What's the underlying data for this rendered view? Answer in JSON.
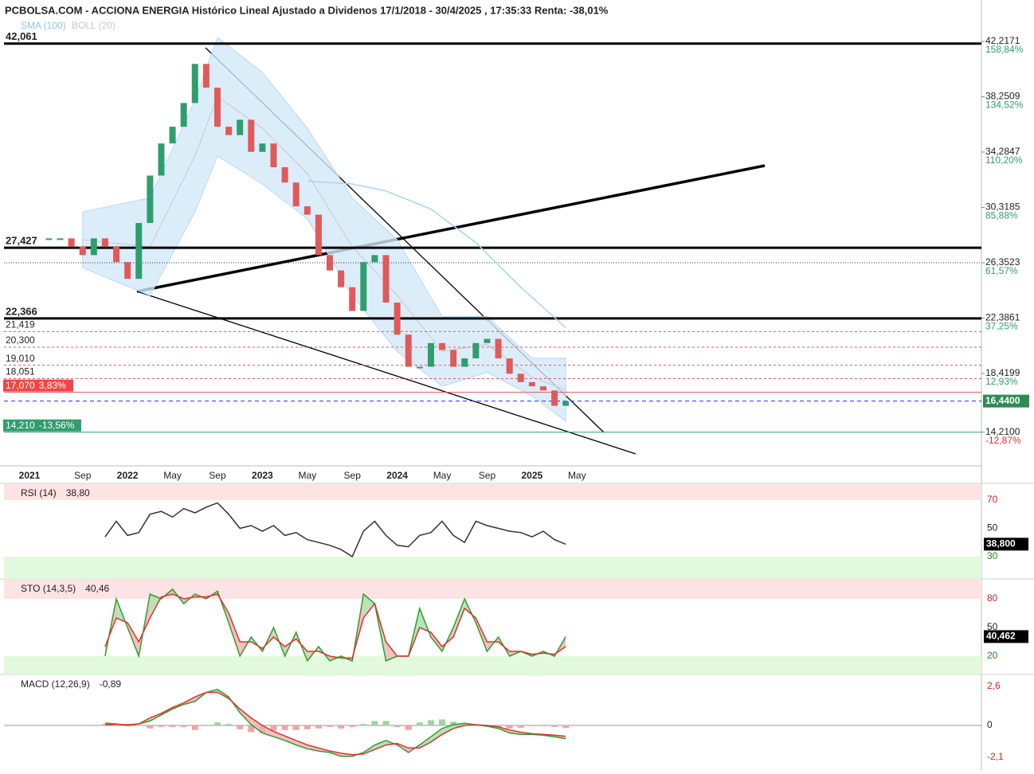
{
  "chart_data": [
    {
      "type": "candlestick",
      "title": "PCBOLSA.COM - ACCIONA ENERGIA Histórico Lineal Ajustado a Dividenos 17/1/2018 - 30/4/2025 , 17:35:33 Renta: -38,01%",
      "x": [
        "2021-06",
        "2021-07",
        "2021-08",
        "2021-09",
        "2021-10",
        "2021-11",
        "2021-12",
        "2022-01",
        "2022-02",
        "2022-03",
        "2022-04",
        "2022-05",
        "2022-06",
        "2022-07",
        "2022-08",
        "2022-09",
        "2022-10",
        "2022-11",
        "2022-12",
        "2023-01",
        "2023-02",
        "2023-03",
        "2023-04",
        "2023-05",
        "2023-06",
        "2023-07",
        "2023-08",
        "2023-09",
        "2023-10",
        "2023-11",
        "2023-12",
        "2024-01",
        "2024-02",
        "2024-03",
        "2024-04",
        "2024-05",
        "2024-06",
        "2024-07",
        "2024-08",
        "2024-09",
        "2024-10",
        "2024-11",
        "2024-12",
        "2025-01",
        "2025-02",
        "2025-03",
        "2025-04"
      ],
      "values": [
        28.1,
        28.1,
        27.5,
        26.9,
        28.1,
        27.5,
        26.4,
        25.2,
        29.2,
        32.6,
        34.9,
        36.1,
        37.8,
        40.6,
        38.9,
        36.1,
        35.5,
        36.6,
        34.3,
        34.9,
        33.2,
        32.1,
        30.4,
        29.8,
        26.9,
        25.8,
        24.6,
        22.9,
        26.4,
        26.9,
        23.5,
        21.2,
        18.9,
        18.9,
        20.6,
        20.1,
        18.9,
        19.5,
        20.6,
        20.9,
        19.5,
        18.4,
        17.8,
        17.5,
        17.2,
        16.1,
        16.44
      ],
      "up_color": "#2e9e6e",
      "down_color": "#e05a5a",
      "series": [
        {
          "name": "SMA (100)",
          "color": "#a8d4f0",
          "x": [
            "2023-05",
            "2023-09",
            "2023-12",
            "2024-04",
            "2024-08",
            "2024-12",
            "2025-04"
          ],
          "values": [
            32.2,
            32.0,
            31.5,
            30.2,
            27.8,
            24.6,
            21.7
          ]
        }
      ],
      "band": {
        "name": "BOLL (20)",
        "color": "#c8c8c8",
        "fill": "#d3e9f9",
        "x": [
          "2021-09",
          "2022-03",
          "2022-07",
          "2022-09",
          "2023-01",
          "2023-05",
          "2023-09",
          "2024-01",
          "2024-05",
          "2024-09",
          "2025-01",
          "2025-04"
        ],
        "upper": [
          30.0,
          31,
          38,
          42.5,
          40,
          36,
          31,
          28,
          22.5,
          22.5,
          19.5,
          19.5
        ],
        "lower": [
          26.0,
          24,
          30,
          34,
          32,
          29.5,
          24,
          20,
          17.5,
          18.5,
          16.8,
          15
        ]
      },
      "levels": [
        {
          "value": 42.061,
          "label": "42,061",
          "style": "thick"
        },
        {
          "value": 27.427,
          "label": "27,427",
          "style": "thick"
        },
        {
          "value": 26.3523,
          "style": "dotted"
        },
        {
          "value": 22.366,
          "label": "22,366",
          "style": "thick"
        },
        {
          "value": 21.419,
          "label": "21,419",
          "style": "dashed"
        },
        {
          "value": 20.3,
          "label": "20,300",
          "style": "dashed"
        },
        {
          "value": 19.01,
          "label": "19,010",
          "style": "dashed"
        },
        {
          "value": 18.051,
          "label": "18,051",
          "style": "dashed"
        },
        {
          "value": 17.07,
          "label": "17,070",
          "pct": "3,83%",
          "style": "red"
        },
        {
          "value": 16.44,
          "label": "16,4400",
          "style": "current"
        },
        {
          "value": 14.21,
          "label": "14,210",
          "pct": "-13,56%",
          "style": "green"
        }
      ],
      "xlim": [
        "2021-02",
        "2028-05"
      ],
      "xticks": [
        {
          "value": "2021-01",
          "label": "2021"
        },
        {
          "value": "2021-09",
          "label": "Sep"
        },
        {
          "value": "2022-01",
          "label": "2022"
        },
        {
          "value": "2022-05",
          "label": "May"
        },
        {
          "value": "2022-09",
          "label": "Sep"
        },
        {
          "value": "2023-01",
          "label": "2023"
        },
        {
          "value": "2023-05",
          "label": "May"
        },
        {
          "value": "2023-09",
          "label": "Sep"
        },
        {
          "value": "2024-01",
          "label": "2024"
        },
        {
          "value": "2024-05",
          "label": "May"
        },
        {
          "value": "2024-09",
          "label": "Sep"
        },
        {
          "value": "2025-01",
          "label": "2025"
        },
        {
          "value": "2025-05",
          "label": "May"
        }
      ],
      "ylim": [
        11.8,
        43.47
      ],
      "yticks": [
        {
          "value": 42.2171,
          "label": "42,2171"
        },
        {
          "value": 38.2509,
          "label": "38,2509"
        },
        {
          "value": 34.2847,
          "label": "34,2847"
        },
        {
          "value": 30.3185,
          "label": "30,3185"
        },
        {
          "value": 26.3523,
          "label": "26,3523"
        },
        {
          "value": 22.3861,
          "label": "22,3861"
        },
        {
          "value": 18.4199,
          "label": "18,4199"
        },
        {
          "value": 14.21,
          "label": "14,2100"
        }
      ],
      "y2lim": [
        -27.65,
        166.53
      ],
      "y2ticks": [
        {
          "value": 158.84,
          "label": "158,84%"
        },
        {
          "value": 134.52,
          "label": "134,52%"
        },
        {
          "value": 110.2,
          "label": "110,20%"
        },
        {
          "value": 85.88,
          "label": "85,88%"
        },
        {
          "value": 61.57,
          "label": "61,57%"
        },
        {
          "value": 37.25,
          "label": "37,25%"
        },
        {
          "value": 12.93,
          "label": "12,93%"
        },
        {
          "value": -12.87,
          "label": "-12,87%"
        }
      ]
    },
    {
      "type": "line",
      "title": "RSI (14)",
      "value_label": "38,80",
      "last_label": "38,800",
      "x": [
        "2021-11",
        "2021-12",
        "2022-01",
        "2022-02",
        "2022-03",
        "2022-04",
        "2022-05",
        "2022-06",
        "2022-07",
        "2022-08",
        "2022-09",
        "2022-10",
        "2022-11",
        "2022-12",
        "2023-01",
        "2023-02",
        "2023-03",
        "2023-04",
        "2023-05",
        "2023-06",
        "2023-07",
        "2023-08",
        "2023-09",
        "2023-10",
        "2023-11",
        "2023-12",
        "2024-01",
        "2024-02",
        "2024-03",
        "2024-04",
        "2024-05",
        "2024-06",
        "2024-07",
        "2024-08",
        "2024-09",
        "2024-10",
        "2024-11",
        "2024-12",
        "2025-01",
        "2025-02",
        "2025-03",
        "2025-04"
      ],
      "series": [
        {
          "color": "#333333",
          "values": [
            44,
            55,
            45,
            47,
            60,
            62,
            58,
            64,
            61,
            65,
            68,
            60,
            50,
            52,
            48,
            52,
            45,
            47,
            42,
            40,
            38,
            35,
            30,
            48,
            55,
            45,
            38,
            37,
            45,
            47,
            55,
            45,
            40,
            55,
            52,
            50,
            48,
            47,
            44,
            48,
            42,
            38.8
          ]
        }
      ],
      "zones": [
        {
          "above": 70,
          "color": "#fde3e3"
        },
        {
          "below": 30,
          "color": "#e2f9dd"
        }
      ],
      "ylim": [
        14.2,
        81.3
      ],
      "yticks": [
        70,
        50,
        30
      ],
      "tick_colors": [
        "#d62020",
        "#222222",
        "#1a8a1a"
      ]
    },
    {
      "type": "line",
      "title": "STO (14,3,5)",
      "value_label": "40,46",
      "last_label": "40,462",
      "fill_between": true,
      "x": [
        "2021-11",
        "2021-12",
        "2022-01",
        "2022-02",
        "2022-03",
        "2022-04",
        "2022-05",
        "2022-06",
        "2022-07",
        "2022-08",
        "2022-09",
        "2022-10",
        "2022-11",
        "2022-12",
        "2023-01",
        "2023-02",
        "2023-03",
        "2023-04",
        "2023-05",
        "2023-06",
        "2023-07",
        "2023-08",
        "2023-09",
        "2023-10",
        "2023-11",
        "2023-12",
        "2024-01",
        "2024-02",
        "2024-03",
        "2024-04",
        "2024-05",
        "2024-06",
        "2024-07",
        "2024-08",
        "2024-09",
        "2024-10",
        "2024-11",
        "2024-12",
        "2025-01",
        "2025-02",
        "2025-03",
        "2025-04"
      ],
      "series": [
        {
          "color": "#2ca02c",
          "values": [
            20,
            80,
            50,
            20,
            85,
            80,
            90,
            75,
            85,
            80,
            88,
            55,
            20,
            40,
            25,
            50,
            20,
            45,
            15,
            30,
            15,
            20,
            15,
            85,
            75,
            15,
            20,
            20,
            70,
            40,
            25,
            50,
            80,
            55,
            25,
            40,
            20,
            25,
            20,
            25,
            20,
            40.46
          ]
        },
        {
          "color": "#e03030",
          "values": [
            30,
            60,
            55,
            35,
            60,
            82,
            85,
            80,
            82,
            82,
            85,
            65,
            35,
            35,
            28,
            40,
            30,
            38,
            25,
            25,
            20,
            18,
            18,
            60,
            75,
            35,
            20,
            20,
            50,
            45,
            30,
            40,
            70,
            60,
            35,
            35,
            25,
            25,
            22,
            23,
            22,
            30
          ]
        }
      ],
      "zones": [
        {
          "above": 80,
          "color": "#fde3e3"
        },
        {
          "below": 20,
          "color": "#e2f9dd"
        }
      ],
      "ylim": [
        0.8,
        100
      ],
      "yticks": [
        80,
        50,
        20
      ],
      "tick_colors": [
        "#d62020",
        "#222222",
        "#1a8a1a"
      ]
    },
    {
      "type": "line",
      "title": "MACD (12,26,9)",
      "value_label": "-0,89",
      "fill_between": true,
      "histogram": true,
      "x": [
        "2021-11",
        "2021-12",
        "2022-01",
        "2022-02",
        "2022-03",
        "2022-04",
        "2022-05",
        "2022-06",
        "2022-07",
        "2022-08",
        "2022-09",
        "2022-10",
        "2022-11",
        "2022-12",
        "2023-01",
        "2023-02",
        "2023-03",
        "2023-04",
        "2023-05",
        "2023-06",
        "2023-07",
        "2023-08",
        "2023-09",
        "2023-10",
        "2023-11",
        "2023-12",
        "2024-01",
        "2024-02",
        "2024-03",
        "2024-04",
        "2024-05",
        "2024-06",
        "2024-07",
        "2024-08",
        "2024-09",
        "2024-10",
        "2024-11",
        "2024-12",
        "2025-01",
        "2025-02",
        "2025-03",
        "2025-04"
      ],
      "series": [
        {
          "color": "#2ca02c",
          "values": [
            0.16,
            0.1,
            0,
            0.1,
            0.3,
            0.7,
            1.1,
            1.4,
            1.6,
            2.2,
            2.4,
            1.9,
            0.85,
            0.05,
            -0.5,
            -0.75,
            -1.0,
            -1.3,
            -1.55,
            -1.7,
            -1.8,
            -2.05,
            -2.05,
            -1.8,
            -1.3,
            -1.0,
            -1.3,
            -1.8,
            -1.3,
            -0.75,
            -0.2,
            0.05,
            0.15,
            0.05,
            -0.05,
            -0.2,
            -0.5,
            -0.6,
            -0.6,
            -0.65,
            -0.75,
            -0.89
          ]
        },
        {
          "color": "#e03030",
          "values": [
            0.05,
            0.08,
            0.05,
            0.1,
            0.5,
            0.8,
            1.2,
            1.5,
            1.9,
            2.2,
            2.2,
            1.8,
            1.1,
            0.5,
            0,
            -0.4,
            -0.7,
            -1.0,
            -1.3,
            -1.5,
            -1.7,
            -1.85,
            -1.95,
            -1.9,
            -1.6,
            -1.3,
            -1.2,
            -1.5,
            -1.5,
            -1.1,
            -0.6,
            -0.2,
            0,
            0.05,
            0,
            -0.1,
            -0.3,
            -0.45,
            -0.55,
            -0.6,
            -0.65,
            -0.72
          ]
        }
      ],
      "ylim": [
        -3.02,
        3.34
      ],
      "yticks": [
        {
          "value": 2.6,
          "label": "2,6"
        },
        0,
        {
          "value": -2.1,
          "label": "-2,1"
        }
      ],
      "tick_colors": [
        "#d62020",
        "#222222",
        "#d62020"
      ]
    }
  ]
}
